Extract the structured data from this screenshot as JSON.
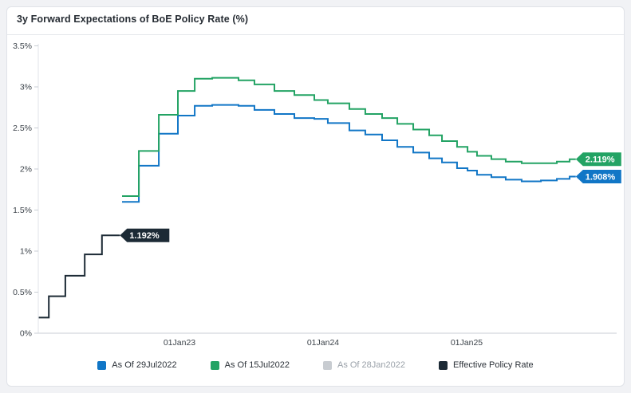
{
  "header": {
    "title": "3y Forward Expectations of BoE Policy Rate (%)"
  },
  "chart_data": {
    "type": "line",
    "subtype": "step",
    "title": "3y Forward Expectations of BoE Policy Rate (%)",
    "xlabel": "",
    "ylabel": "",
    "grid": false,
    "legend_position": "bottom",
    "x_axis": {
      "range": [
        2022.0,
        2026.05
      ],
      "ticks": [
        {
          "x": 2023.0,
          "label": "01Jan23"
        },
        {
          "x": 2024.0,
          "label": "01Jan24"
        },
        {
          "x": 2025.0,
          "label": "01Jan25"
        }
      ]
    },
    "y_axis": {
      "range": [
        0,
        3.5
      ],
      "unit": "%",
      "ticks": [
        {
          "v": 0,
          "label": "0%"
        },
        {
          "v": 0.5,
          "label": "0.5%"
        },
        {
          "v": 1,
          "label": "1%"
        },
        {
          "v": 1.5,
          "label": "1.5%"
        },
        {
          "v": 2,
          "label": "2%"
        },
        {
          "v": 2.5,
          "label": "2.5%"
        },
        {
          "v": 3,
          "label": "3%"
        },
        {
          "v": 3.5,
          "label": "3.5%"
        }
      ]
    },
    "series": [
      {
        "name": "As Of 29Jul2022",
        "color": "#1176c6",
        "visible": true,
        "end_label": "1.908%",
        "end_x": 2025.76,
        "label_width": 57,
        "x": [
          2022.6,
          2022.717,
          2022.856,
          2022.989,
          2023.106,
          2023.228,
          2023.411,
          2023.522,
          2023.661,
          2023.8,
          2023.939,
          2024.033,
          2024.183,
          2024.294,
          2024.411,
          2024.517,
          2024.628,
          2024.739,
          2024.828,
          2024.933,
          2025.006,
          2025.072,
          2025.172,
          2025.272,
          2025.383,
          2025.517,
          2025.628,
          2025.717
        ],
        "values": [
          1.6,
          2.04,
          2.43,
          2.65,
          2.77,
          2.78,
          2.77,
          2.72,
          2.67,
          2.62,
          2.61,
          2.56,
          2.47,
          2.42,
          2.35,
          2.27,
          2.2,
          2.13,
          2.08,
          2.01,
          1.98,
          1.93,
          1.9,
          1.87,
          1.85,
          1.86,
          1.88,
          1.908
        ]
      },
      {
        "name": "As Of 15Jul2022",
        "color": "#23a364",
        "visible": true,
        "end_label": "2.119%",
        "end_x": 2025.76,
        "label_width": 57,
        "x": [
          2022.6,
          2022.717,
          2022.856,
          2022.989,
          2023.106,
          2023.228,
          2023.411,
          2023.522,
          2023.661,
          2023.8,
          2023.939,
          2024.033,
          2024.183,
          2024.294,
          2024.411,
          2024.517,
          2024.628,
          2024.739,
          2024.828,
          2024.933,
          2025.006,
          2025.072,
          2025.172,
          2025.272,
          2025.383,
          2025.517,
          2025.628,
          2025.717
        ],
        "values": [
          1.67,
          2.22,
          2.66,
          2.95,
          3.1,
          3.11,
          3.08,
          3.03,
          2.95,
          2.9,
          2.84,
          2.8,
          2.73,
          2.67,
          2.62,
          2.55,
          2.48,
          2.41,
          2.34,
          2.27,
          2.21,
          2.16,
          2.12,
          2.09,
          2.07,
          2.07,
          2.09,
          2.119
        ]
      },
      {
        "name": "As Of 28Jan2022",
        "color": "#c8ccd1",
        "visible": false,
        "end_label": null,
        "x": [],
        "values": []
      },
      {
        "name": "Effective Policy Rate",
        "color": "#1c2a35",
        "visible": true,
        "end_label": "1.192%",
        "end_x": 2022.585,
        "label_width": 62,
        "x": [
          2022.02,
          2022.09,
          2022.205,
          2022.34,
          2022.46
        ],
        "values": [
          0.19,
          0.45,
          0.7,
          0.96,
          1.192
        ]
      }
    ],
    "legend": {
      "items": [
        {
          "label": "As Of 29Jul2022",
          "color": "#1176c6",
          "muted": false
        },
        {
          "label": "As Of 15Jul2022",
          "color": "#23a364",
          "muted": false
        },
        {
          "label": "As Of 28Jan2022",
          "color": "#c8ccd1",
          "muted": true
        },
        {
          "label": "Effective Policy Rate",
          "color": "#1c2a35",
          "muted": false
        }
      ]
    },
    "colors": {
      "axis_line": "#c9ced4",
      "y_axis_line": "#e0e3e8",
      "axis_text": "#3c434a",
      "label_text": "#ffffff"
    }
  }
}
